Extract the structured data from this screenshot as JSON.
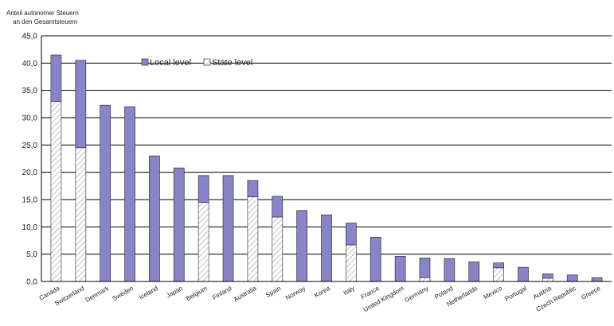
{
  "chart_data": {
    "type": "bar",
    "stacked": true,
    "ylabel_lines": [
      "Anteil autonomer Steuern",
      "an den Gesamtsteuern"
    ],
    "ylim": [
      0,
      45
    ],
    "yticks": [
      "0,0",
      "5,0",
      "10,0",
      "15,0",
      "20,0",
      "25,0",
      "30,0",
      "35,0",
      "40,0",
      "45,0"
    ],
    "grid": true,
    "legend_position": "top-center",
    "categories": [
      "Canada",
      "Switzerland",
      "Denmark",
      "Sweden",
      "Iceland",
      "Japan",
      "Belgium",
      "Finland",
      "Australia",
      "Spain",
      "Norway",
      "Korea",
      "Italy",
      "France",
      "United Kingdom",
      "Germany",
      "Poland",
      "Netherlands",
      "Mexico",
      "Portugal",
      "Austria",
      "Czech Republic",
      "Greece"
    ],
    "series": [
      {
        "name": "State level",
        "color": "#ffffff",
        "pattern": "hatch",
        "values": [
          33.0,
          24.5,
          0,
          0,
          0,
          0,
          14.5,
          0,
          15.5,
          11.8,
          0,
          0,
          6.7,
          0,
          0,
          0.7,
          0,
          0,
          2.5,
          0,
          0.6,
          0,
          0
        ]
      },
      {
        "name": "Local level",
        "color": "#8884c8",
        "values": [
          8.5,
          16.0,
          32.3,
          32.0,
          23.0,
          20.8,
          4.9,
          19.4,
          3.0,
          3.8,
          13.0,
          12.2,
          4.0,
          8.1,
          4.6,
          3.6,
          4.2,
          3.6,
          0.9,
          2.6,
          0.8,
          1.2,
          0.7
        ]
      }
    ]
  }
}
